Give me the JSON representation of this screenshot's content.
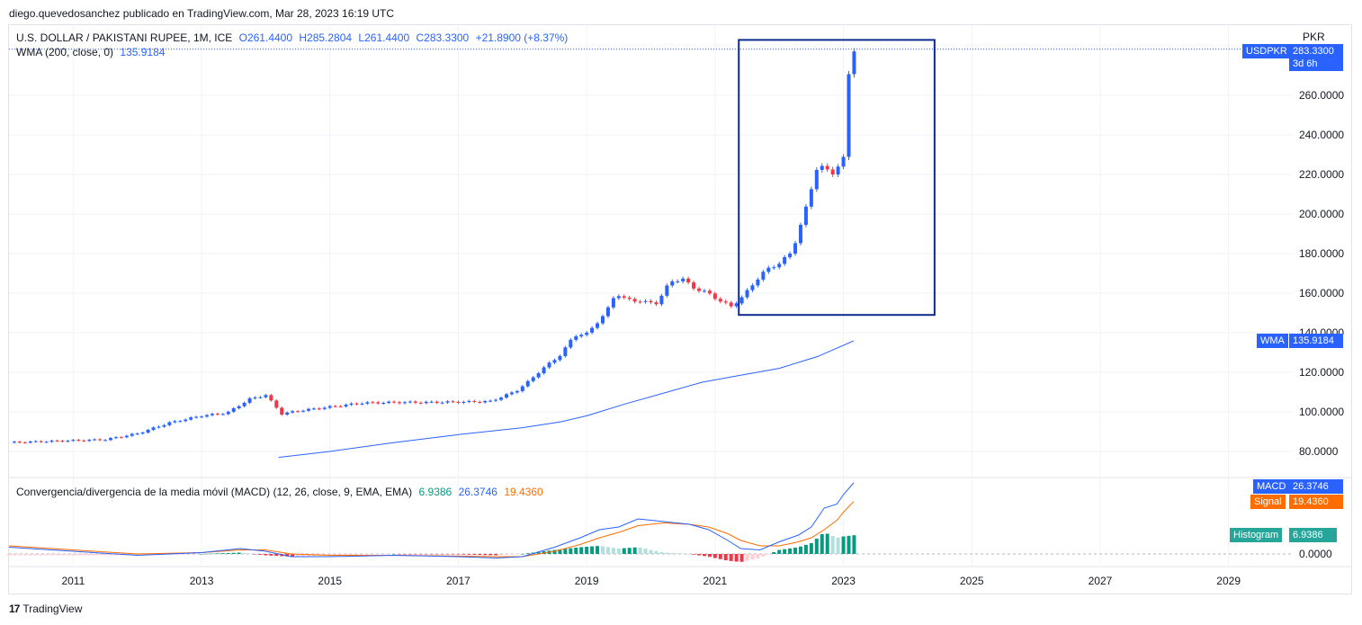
{
  "attribution": "diego.quevedosanchez publicado en TradingView.com, Mar 28, 2023 16:19 UTC",
  "legend": {
    "symbol": "U.S. DOLLAR / PAKISTANI RUPEE, 1M, ICE",
    "open": "O261.4400",
    "high": "H285.2804",
    "low": "L261.4400",
    "close": "C283.3300",
    "change": "+21.8900 (+8.37%)",
    "wma_label": "WMA (200, close, 0)",
    "wma_value": "135.9184"
  },
  "macd_legend": {
    "label": "Convergencia/divergencia de la media móvil (MACD) (12, 26, close, 9, EMA, EMA)",
    "hist": "6.9386",
    "macd": "26.3746",
    "signal": "19.4360"
  },
  "axis": {
    "currency": "PKR",
    "ticks": [
      "260.0000",
      "240.0000",
      "220.0000",
      "200.0000",
      "180.0000",
      "160.0000",
      "140.0000",
      "120.0000",
      "100.0000",
      "80.0000"
    ],
    "tick_values": [
      260,
      240,
      220,
      200,
      180,
      160,
      140,
      120,
      100,
      80
    ],
    "macd_tick": "0.0000",
    "years": [
      "2011",
      "2013",
      "2015",
      "2017",
      "2019",
      "2021",
      "2023",
      "2025",
      "2027",
      "2029"
    ]
  },
  "badges": {
    "price_symbol": "USDPKR",
    "price_value": "283.3300",
    "price_countdown": "3d 6h",
    "wma_name": "WMA",
    "wma_value": "135.9184",
    "macd_name": "MACD",
    "macd_value": "26.3746",
    "signal_name": "Signal",
    "signal_value": "19.4360",
    "hist_name": "Histogram",
    "hist_value": "6.9386"
  },
  "colors": {
    "up": "#2962ff",
    "down": "#f23645",
    "wma": "#2962ff",
    "macd": "#2962ff",
    "signal": "#ff6d00",
    "hist_up_strong": "#089981",
    "hist_up_weak": "#b2dfdb",
    "hist_down_strong": "#f23645",
    "hist_down_weak": "#ffcdd2",
    "highlight_box": "#0d2a8c"
  },
  "footer": {
    "logo": "17",
    "brand": "TradingView"
  },
  "chart_data": {
    "type": "candlestick",
    "timeframe": "1M",
    "ylim": [
      70,
      290
    ],
    "xlim": [
      2010.0,
      2030.0
    ],
    "price_anchors": {
      "x": [
        2010.0,
        2011.0,
        2011.5,
        2012.0,
        2012.5,
        2013.0,
        2013.4,
        2013.75,
        2014.0,
        2014.25,
        2014.5,
        2015.0,
        2015.5,
        2016.0,
        2016.5,
        2017.0,
        2017.5,
        2017.9,
        2018.1,
        2018.3,
        2018.6,
        2018.8,
        2019.0,
        2019.3,
        2019.45,
        2019.6,
        2019.9,
        2020.1,
        2020.3,
        2020.5,
        2020.7,
        2020.9,
        2021.1,
        2021.25,
        2021.4,
        2021.6,
        2021.8,
        2022.0,
        2022.2,
        2022.4,
        2022.6,
        2022.75,
        2022.85,
        2022.92,
        2023.0,
        2023.08,
        2023.16
      ],
      "y": [
        84.5,
        85.5,
        86,
        89,
        94.5,
        98,
        99.5,
        106.5,
        108.5,
        99,
        100.5,
        102.5,
        104.5,
        104.8,
        104.8,
        105.0,
        105.3,
        110.5,
        115.5,
        121.5,
        129,
        138.5,
        139.5,
        150,
        160,
        157,
        155.5,
        155,
        166,
        167,
        162,
        160,
        155.5,
        153.5,
        157,
        165,
        172,
        175,
        181,
        201,
        225,
        222,
        220.5,
        224.5,
        228,
        270,
        283.33
      ]
    },
    "wma_line": {
      "x": [
        2014.2,
        2015.0,
        2016.0,
        2017.0,
        2018.0,
        2018.6,
        2019.0,
        2019.6,
        2020.2,
        2020.8,
        2021.4,
        2022.0,
        2022.6,
        2023.16
      ],
      "y": [
        77,
        80,
        84.5,
        88.5,
        92,
        95,
        98,
        104,
        109.5,
        115,
        118.5,
        122,
        128,
        135.92
      ]
    },
    "macd_line": {
      "x": [
        2010.0,
        2011.0,
        2012.0,
        2013.0,
        2013.6,
        2014.0,
        2014.4,
        2015.0,
        2016.0,
        2017.0,
        2017.6,
        2018.0,
        2018.5,
        2018.9,
        2019.2,
        2019.5,
        2019.8,
        2020.2,
        2020.6,
        2020.9,
        2021.2,
        2021.4,
        2021.7,
        2022.0,
        2022.3,
        2022.5,
        2022.7,
        2022.9,
        2023.0,
        2023.16
      ],
      "y": [
        2.5,
        1.0,
        -0.5,
        0.5,
        2.0,
        1.0,
        -1.0,
        -1.0,
        -0.5,
        -1.0,
        -1.5,
        -1.0,
        2.5,
        6.0,
        9.0,
        10.0,
        13.0,
        12.0,
        11.0,
        9.0,
        5.0,
        2.0,
        1.5,
        4.5,
        7.0,
        10.0,
        17.0,
        18.5,
        22.0,
        26.37
      ]
    },
    "signal_line": {
      "x": [
        2010.0,
        2011.0,
        2012.0,
        2013.0,
        2013.6,
        2014.0,
        2014.4,
        2015.0,
        2016.0,
        2017.0,
        2017.6,
        2018.0,
        2018.5,
        2018.9,
        2019.2,
        2019.5,
        2019.8,
        2020.2,
        2020.6,
        2020.9,
        2021.2,
        2021.4,
        2021.7,
        2022.0,
        2022.3,
        2022.5,
        2022.7,
        2022.9,
        2023.0,
        2023.16
      ],
      "y": [
        3.0,
        1.5,
        0.0,
        0.5,
        1.5,
        1.5,
        0.0,
        -0.5,
        -0.5,
        -0.8,
        -1.0,
        -1.0,
        1.0,
        3.5,
        6.0,
        8.0,
        10.5,
        11.5,
        11.0,
        10.0,
        7.5,
        5.0,
        3.0,
        3.0,
        4.5,
        6.0,
        9.0,
        12.5,
        15.5,
        19.44
      ]
    },
    "macd_ylim": [
      -5,
      30
    ]
  }
}
